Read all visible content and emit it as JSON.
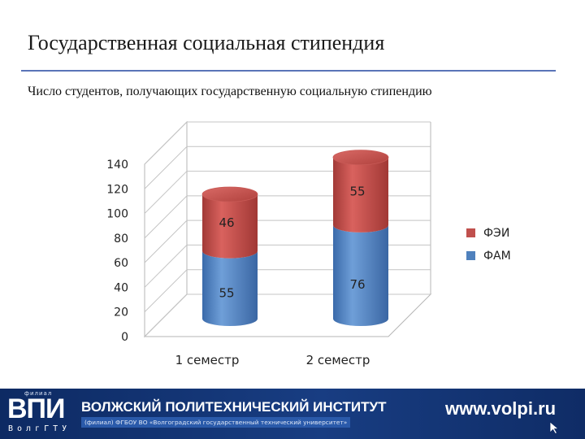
{
  "slide": {
    "title": "Государственная социальная стипендия",
    "subtitle": "Число студентов, получающих государственную социальную стипендию"
  },
  "chart_data": {
    "type": "bar",
    "stacked": true,
    "shape": "3d-cylinder",
    "categories": [
      "1 семестр",
      "2 семестр"
    ],
    "series": [
      {
        "name": "ФАМ",
        "values": [
          55,
          76
        ],
        "color": "#4f81bd"
      },
      {
        "name": "ФЭИ",
        "values": [
          46,
          55
        ],
        "color": "#c0504d"
      }
    ],
    "yticks": [
      0,
      20,
      40,
      60,
      80,
      100,
      120,
      140
    ],
    "ylim": [
      0,
      140
    ],
    "grid": true,
    "legend_position": "right"
  },
  "footer": {
    "logo_small_text": "филиал",
    "logo_text": "ВПИ",
    "logo_city": "ВолгГТУ",
    "institute_name": "ВОЛЖСКИЙ ПОЛИТЕХНИЧЕСКИЙ ИНСТИТУТ",
    "institute_sub": "(филиал) ФГБОУ ВО «Волгоградский государственный технический университет»",
    "website": "www.volpi.ru",
    "background_color": "#13336f"
  }
}
